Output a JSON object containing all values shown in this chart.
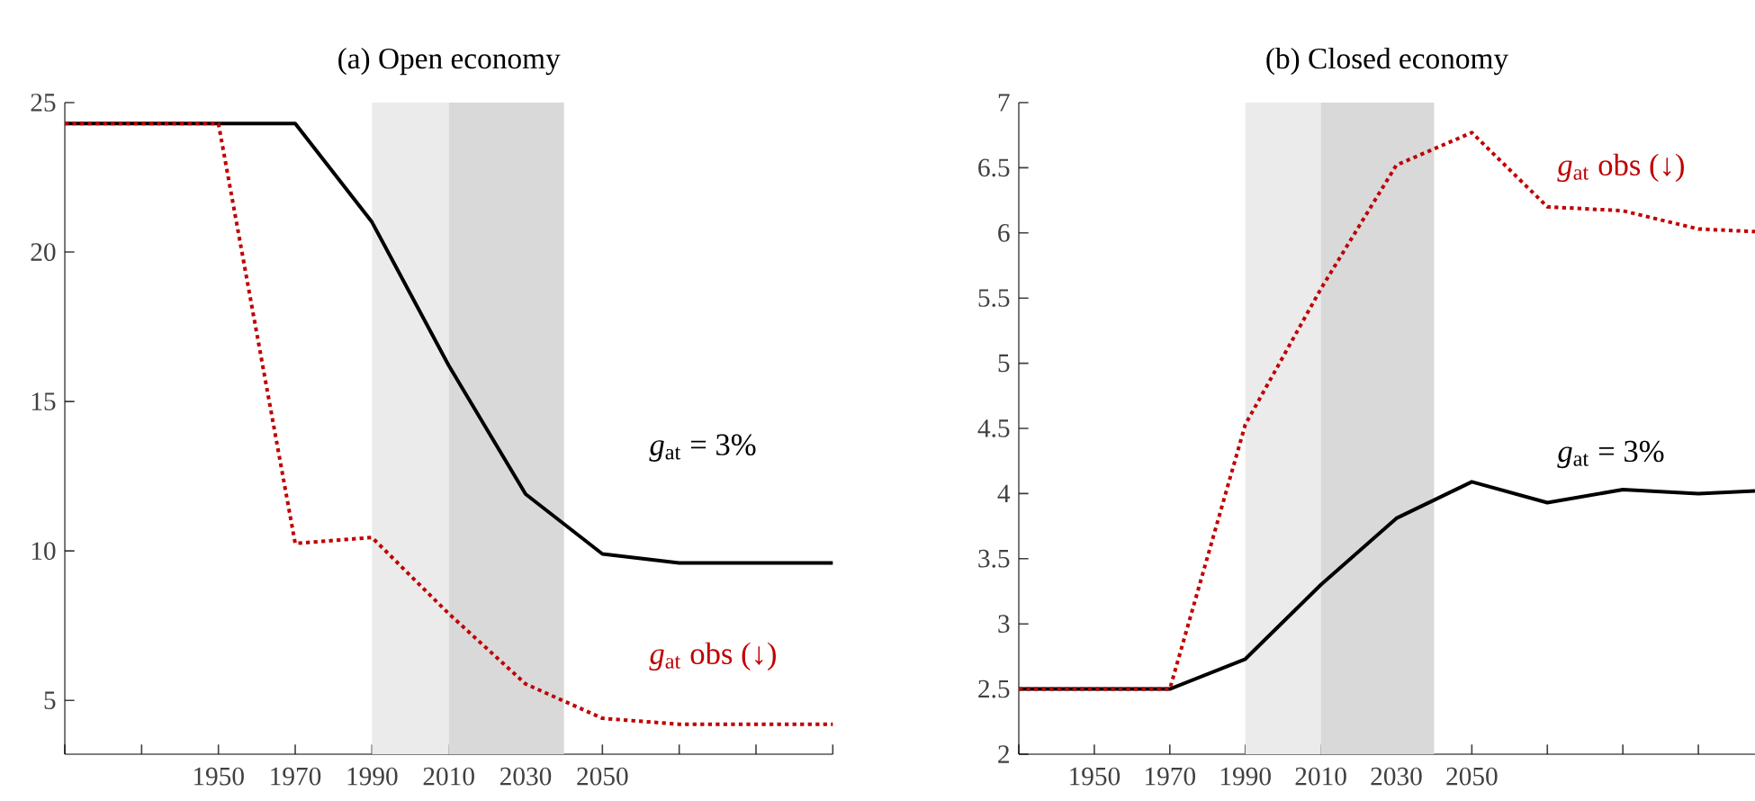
{
  "chart_data": [
    {
      "type": "line",
      "title": "(a) Open economy",
      "xlim": [
        1910,
        2110
      ],
      "ylim": [
        3.2,
        25
      ],
      "xticks": [
        {
          "value": 1910,
          "label": null
        },
        {
          "value": 1930,
          "label": null
        },
        1950,
        1970,
        1990,
        2010,
        2030,
        2050,
        {
          "value": 2070,
          "label": null
        },
        {
          "value": 2090,
          "label": null
        },
        {
          "value": 2110,
          "label": null
        }
      ],
      "yticks": [
        5,
        10,
        15,
        20,
        25
      ],
      "bands": [
        {
          "axis": "x",
          "from": 1990,
          "to": 2010,
          "color": "#ebebeb"
        },
        {
          "axis": "x",
          "from": 2010,
          "to": 2040,
          "color": "#d9d9d9"
        }
      ],
      "series": [
        {
          "name": "*g*$_{at}$ = 3%",
          "color": "#000000",
          "line_style": "solid",
          "x": [
            1910,
            1930,
            1950,
            1970,
            1990,
            2010,
            2030,
            2050,
            2070,
            2090,
            2110
          ],
          "values": [
            24.3,
            24.3,
            24.3,
            24.3,
            21.0,
            16.2,
            11.9,
            9.9,
            9.6,
            9.6,
            9.6
          ]
        },
        {
          "name": "*g*$_{at}$ obs (↓)",
          "color": "#c00000",
          "line_style": "dotted",
          "x": [
            1910,
            1930,
            1950,
            1970,
            1990,
            2010,
            2030,
            2050,
            2070,
            2090,
            2110
          ],
          "values": [
            24.3,
            24.3,
            24.3,
            10.25,
            10.45,
            7.9,
            5.55,
            4.4,
            4.2,
            4.2,
            4.2
          ]
        }
      ]
    },
    {
      "type": "line",
      "title": "(b) Closed economy",
      "xlim": [
        1930,
        2125
      ],
      "ylim": [
        2,
        7
      ],
      "xticks": [
        {
          "value": 1930,
          "label": null
        },
        1950,
        1970,
        1990,
        2010,
        2030,
        2050,
        {
          "value": 2070,
          "label": null
        },
        {
          "value": 2090,
          "label": null
        },
        {
          "value": 2110,
          "label": null
        }
      ],
      "yticks": [
        2,
        2.5,
        3,
        3.5,
        4,
        4.5,
        5,
        5.5,
        6,
        6.5,
        7
      ],
      "bands": [
        {
          "axis": "x",
          "from": 1990,
          "to": 2010,
          "color": "#ebebeb"
        },
        {
          "axis": "x",
          "from": 2010,
          "to": 2040,
          "color": "#d9d9d9"
        }
      ],
      "series": [
        {
          "name": "*g*$_{at}$ = 3%",
          "color": "#000000",
          "line_style": "solid",
          "x": [
            1930,
            1950,
            1970,
            1990,
            2010,
            2030,
            2050,
            2070,
            2090,
            2110,
            2125
          ],
          "values": [
            2.5,
            2.5,
            2.5,
            2.73,
            3.3,
            3.81,
            4.09,
            3.93,
            4.03,
            4.0,
            4.02
          ]
        },
        {
          "name": "*g*$_{at}$ obs (↓)",
          "color": "#c00000",
          "line_style": "dotted",
          "x": [
            1930,
            1950,
            1970,
            1990,
            2010,
            2030,
            2050,
            2070,
            2090,
            2110,
            2125
          ],
          "values": [
            2.5,
            2.5,
            2.5,
            4.53,
            5.57,
            6.52,
            6.77,
            6.2,
            6.17,
            6.03,
            6.01
          ]
        }
      ]
    }
  ]
}
